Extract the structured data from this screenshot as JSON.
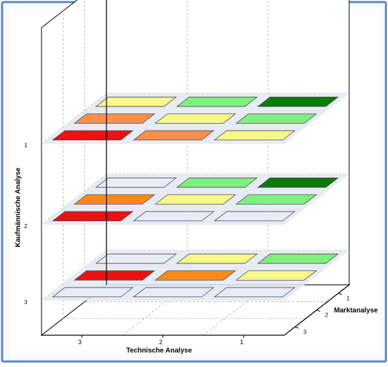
{
  "colors": {
    "frame_border": "#5a87c4",
    "frame_background": "#f7f9fd",
    "plot_background": "#ffffff",
    "axis_line": "#000000",
    "grid_line": "#9a9a9a",
    "layer_plane": "#e3e8f3",
    "cell_outline": "#4a4a4a"
  },
  "chart_data": {
    "type": "heatmap",
    "style": "3d-stacked-layers",
    "grid": true,
    "legend": "none",
    "axes": {
      "x": {
        "label": "Technische Analyse",
        "ticks": [
          "3",
          "2",
          "1"
        ]
      },
      "depth": {
        "label": "Marktanalyse",
        "ticks": [
          "1",
          "2",
          "3"
        ]
      },
      "y": {
        "label": "Kaufmännische Analyse",
        "ticks": [
          "1",
          "2",
          "3"
        ]
      }
    },
    "layers": [
      {
        "y": "1",
        "rows": [
          {
            "depth": "1",
            "cells": [
              "yellow",
              "light-green",
              "dark-green"
            ]
          },
          {
            "depth": "2",
            "cells": [
              "light-orange",
              "yellow",
              "light-green"
            ]
          },
          {
            "depth": "3",
            "cells": [
              "red",
              "light-orange",
              "yellow"
            ]
          }
        ]
      },
      {
        "y": "2",
        "rows": [
          {
            "depth": "1",
            "cells": [
              "pale-blue",
              "light-green",
              "dark-green"
            ]
          },
          {
            "depth": "2",
            "cells": [
              "orange",
              "yellow",
              "light-green"
            ]
          },
          {
            "depth": "3",
            "cells": [
              "red",
              "pale-blue",
              "pale-blue"
            ]
          }
        ]
      },
      {
        "y": "3",
        "rows": [
          {
            "depth": "1",
            "cells": [
              "pale-blue",
              "yellow",
              "light-green"
            ]
          },
          {
            "depth": "2",
            "cells": [
              "red",
              "orange",
              "yellow"
            ]
          },
          {
            "depth": "3",
            "cells": [
              "pale-blue",
              "pale-blue",
              "pale-blue"
            ]
          }
        ]
      }
    ],
    "cell_colors": {
      "red": "#ee1111",
      "orange": "#fa8a16",
      "light-orange": "#f98f4a",
      "yellow": "#f7f78a",
      "light-green": "#7ef07e",
      "dark-green": "#0a7a0a",
      "pale-blue": "#e8ecf7"
    }
  }
}
